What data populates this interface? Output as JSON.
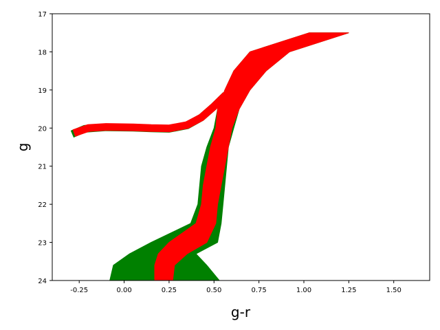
{
  "chart_data": {
    "type": "scatter",
    "title": "",
    "xlabel": "g-r",
    "ylabel": "g",
    "xlim": [
      -0.4,
      1.7
    ],
    "ylim": [
      24,
      17
    ],
    "y_inverted": true,
    "grid": false,
    "x_ticks": [
      "-0.25",
      "0.00",
      "0.25",
      "0.50",
      "0.75",
      "1.00",
      "1.25",
      "1.50"
    ],
    "y_ticks": [
      "17",
      "18",
      "19",
      "20",
      "21",
      "22",
      "23",
      "24"
    ],
    "series": [
      {
        "color": "#008000",
        "marker": "square",
        "band": [
          {
            "g": 17.5,
            "left": 1.03,
            "right": 1.25
          },
          {
            "g": 18.0,
            "left": 0.7,
            "right": 0.92
          },
          {
            "g": 18.5,
            "left": 0.61,
            "right": 0.79
          },
          {
            "g": 19.0,
            "left": 0.56,
            "right": 0.7
          },
          {
            "g": 19.5,
            "left": 0.52,
            "right": 0.64
          },
          {
            "g": 20.0,
            "left": 0.5,
            "right": 0.61
          },
          {
            "g": 20.5,
            "left": 0.46,
            "right": 0.58
          },
          {
            "g": 21.0,
            "left": 0.43,
            "right": 0.57
          },
          {
            "g": 21.5,
            "left": 0.42,
            "right": 0.56
          },
          {
            "g": 22.0,
            "left": 0.41,
            "right": 0.55
          },
          {
            "g": 22.5,
            "left": 0.37,
            "right": 0.54
          },
          {
            "g": 23.0,
            "left": 0.15,
            "right": 0.52
          },
          {
            "g": 23.3,
            "left": 0.03,
            "right": 0.4
          },
          {
            "g": 23.6,
            "left": -0.06,
            "right": 0.46
          },
          {
            "g": 24.0,
            "left": -0.08,
            "right": 0.53
          }
        ],
        "branch": [
          {
            "x": -0.27,
            "g": 20.12
          },
          {
            "x": -0.22,
            "g": 20.02
          },
          {
            "x": -0.1,
            "g": 19.98
          },
          {
            "x": 0.05,
            "g": 19.99
          },
          {
            "x": 0.15,
            "g": 20.01
          },
          {
            "x": 0.25,
            "g": 20.02
          },
          {
            "x": 0.35,
            "g": 19.93
          },
          {
            "x": 0.43,
            "g": 19.72
          },
          {
            "x": 0.5,
            "g": 19.43
          },
          {
            "x": 0.55,
            "g": 19.2
          }
        ]
      },
      {
        "color": "#ff0000",
        "marker": "square",
        "band": [
          {
            "g": 17.5,
            "left": 1.03,
            "right": 1.25
          },
          {
            "g": 18.0,
            "left": 0.7,
            "right": 0.92
          },
          {
            "g": 18.5,
            "left": 0.61,
            "right": 0.79
          },
          {
            "g": 19.0,
            "left": 0.56,
            "right": 0.7
          },
          {
            "g": 19.5,
            "left": 0.52,
            "right": 0.64
          },
          {
            "g": 20.0,
            "left": 0.51,
            "right": 0.6
          },
          {
            "g": 20.5,
            "left": 0.48,
            "right": 0.58
          },
          {
            "g": 21.0,
            "left": 0.46,
            "right": 0.56
          },
          {
            "g": 21.5,
            "left": 0.44,
            "right": 0.54
          },
          {
            "g": 22.0,
            "left": 0.43,
            "right": 0.52
          },
          {
            "g": 22.5,
            "left": 0.4,
            "right": 0.51
          },
          {
            "g": 23.0,
            "left": 0.25,
            "right": 0.46
          },
          {
            "g": 23.3,
            "left": 0.19,
            "right": 0.35
          },
          {
            "g": 23.6,
            "left": 0.17,
            "right": 0.28
          },
          {
            "g": 24.0,
            "left": 0.17,
            "right": 0.27
          }
        ],
        "branch": [
          {
            "x": -0.26,
            "g": 20.1
          },
          {
            "x": -0.2,
            "g": 20.0
          },
          {
            "x": -0.1,
            "g": 19.97
          },
          {
            "x": 0.05,
            "g": 19.98
          },
          {
            "x": 0.15,
            "g": 20.0
          },
          {
            "x": 0.25,
            "g": 20.01
          },
          {
            "x": 0.35,
            "g": 19.92
          },
          {
            "x": 0.43,
            "g": 19.72
          },
          {
            "x": 0.5,
            "g": 19.43
          },
          {
            "x": 0.55,
            "g": 19.2
          }
        ]
      }
    ]
  }
}
